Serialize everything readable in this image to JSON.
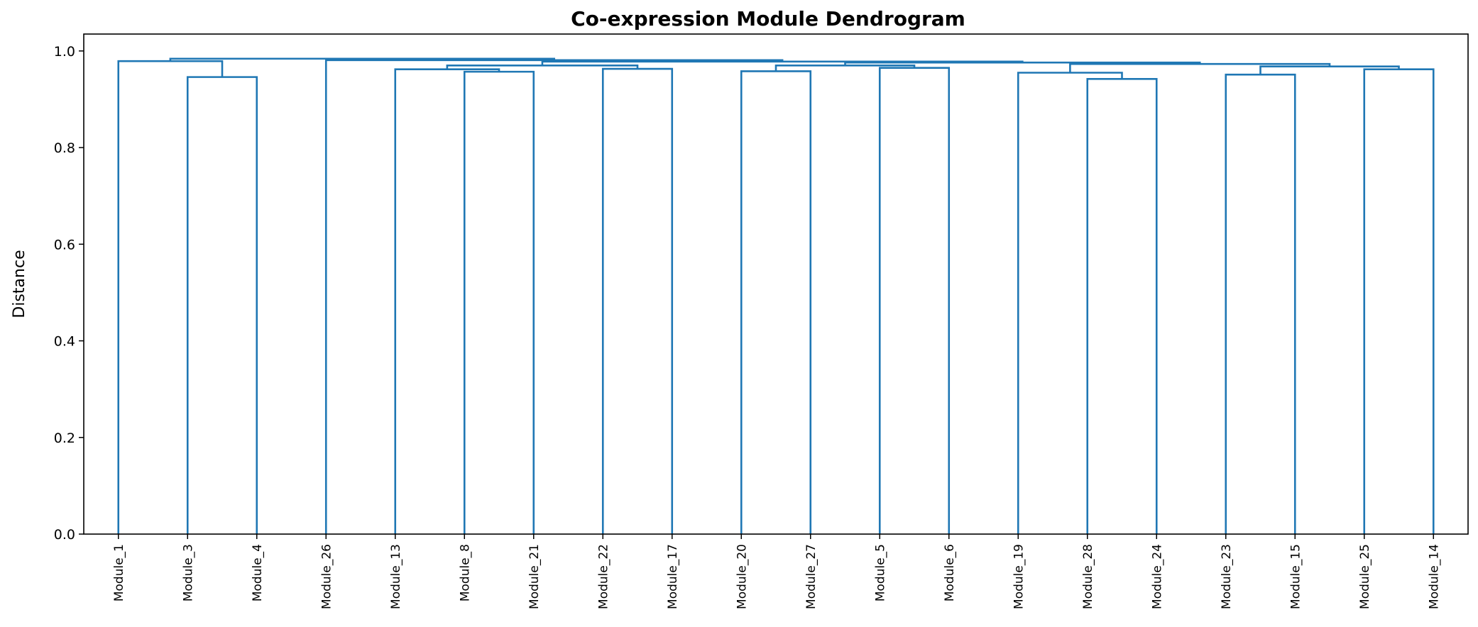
{
  "chart_data": {
    "type": "dendrogram",
    "title": "Co-expression Module Dendrogram",
    "xlabel": "",
    "ylabel": "Distance",
    "ylim": [
      0,
      1.035
    ],
    "yticks": [
      "0.0",
      "0.2",
      "0.4",
      "0.6",
      "0.8",
      "1.0"
    ],
    "grid": false,
    "link_color": "#1f77b4",
    "leaves": [
      "Module_1",
      "Module_3",
      "Module_4",
      "Module_26",
      "Module_13",
      "Module_8",
      "Module_21",
      "Module_22",
      "Module_17",
      "Module_20",
      "Module_27",
      "Module_5",
      "Module_6",
      "Module_19",
      "Module_28",
      "Module_24",
      "Module_23",
      "Module_15",
      "Module_25",
      "Module_14"
    ],
    "merges": [
      {
        "a": "L:Module_24",
        "b": "L:Module_28",
        "height": 0.942
      },
      {
        "a": "L:Module_3",
        "b": "L:Module_4",
        "height": 0.946
      },
      {
        "a": "L:Module_23",
        "b": "L:Module_15",
        "height": 0.951
      },
      {
        "a": "L:Module_19",
        "b": "M:0",
        "height": 0.955
      },
      {
        "a": "L:Module_8",
        "b": "L:Module_21",
        "height": 0.957
      },
      {
        "a": "L:Module_20",
        "b": "L:Module_27",
        "height": 0.958
      },
      {
        "a": "L:Module_13",
        "b": "M:4",
        "height": 0.962
      },
      {
        "a": "L:Module_25",
        "b": "L:Module_14",
        "height": 0.962
      },
      {
        "a": "L:Module_22",
        "b": "L:Module_17",
        "height": 0.963
      },
      {
        "a": "L:Module_5",
        "b": "L:Module_6",
        "height": 0.965
      },
      {
        "a": "M:2",
        "b": "M:7",
        "height": 0.968
      },
      {
        "a": "M:6",
        "b": "M:8",
        "height": 0.97
      },
      {
        "a": "M:5",
        "b": "M:9",
        "height": 0.97
      },
      {
        "a": "M:3",
        "b": "M:10",
        "height": 0.973
      },
      {
        "a": "M:12",
        "b": "M:13",
        "height": 0.976
      },
      {
        "a": "L:Module_1",
        "b": "M:1",
        "height": 0.979
      },
      {
        "a": "M:11",
        "b": "M:14",
        "height": 0.978
      },
      {
        "a": "L:Module_26",
        "b": "M:16",
        "height": 0.981
      },
      {
        "a": "M:15",
        "b": "M:17",
        "height": 0.984
      }
    ]
  }
}
